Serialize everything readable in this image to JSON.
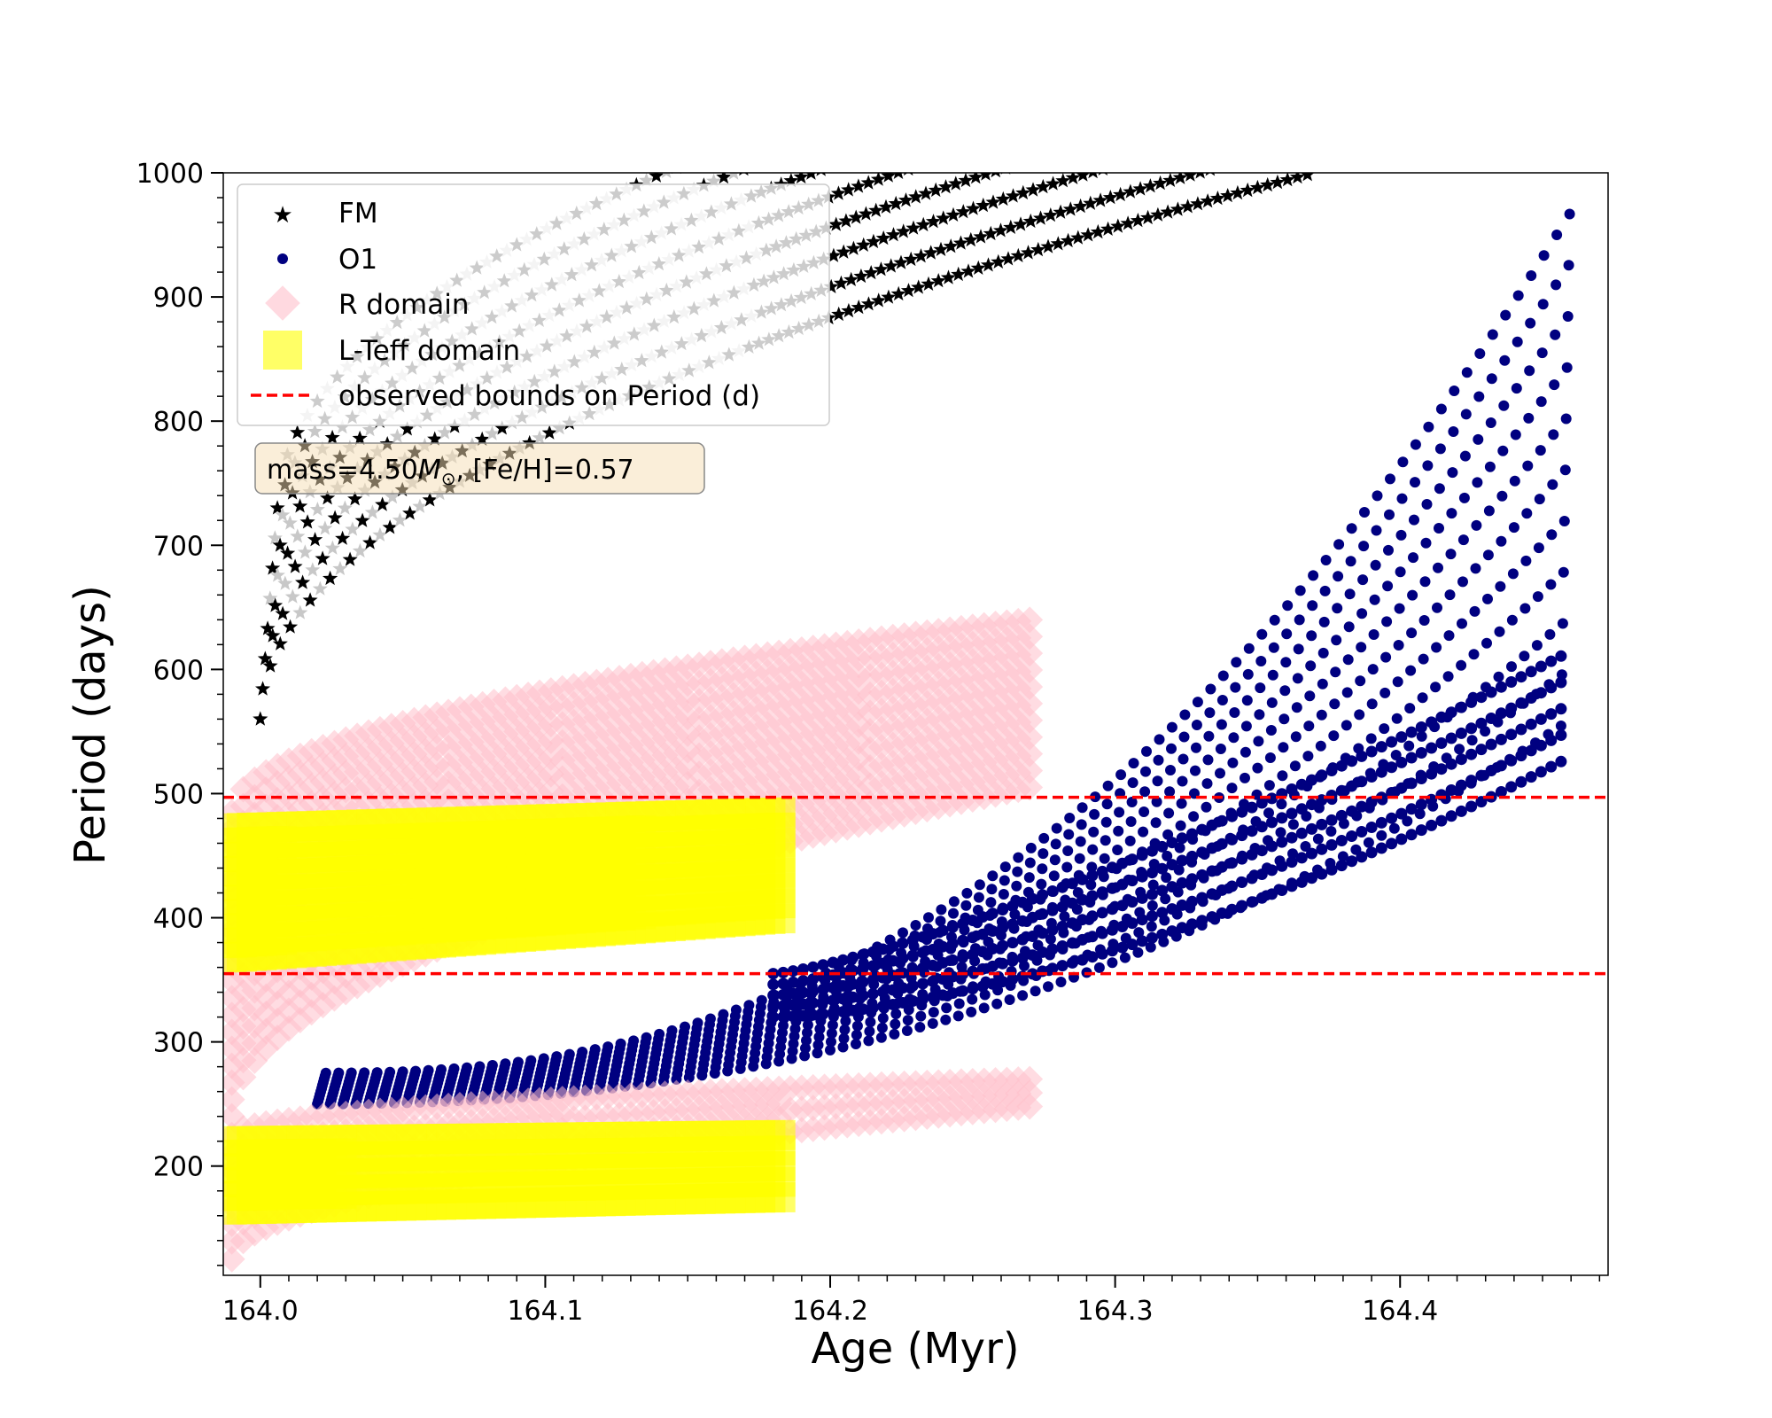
{
  "chart_data": {
    "type": "scatter",
    "xlabel": "Age (Myr)",
    "ylabel": "Period (days)",
    "xlim": [
      163.987,
      164.473
    ],
    "ylim": [
      112,
      1000
    ],
    "xticks": [
      164.0,
      164.1,
      164.2,
      164.3,
      164.4
    ],
    "xtick_labels": [
      "164.0",
      "164.1",
      "164.2",
      "164.3",
      "164.4"
    ],
    "yticks": [
      200,
      300,
      400,
      500,
      600,
      700,
      800,
      900,
      1000
    ],
    "ytick_labels": [
      "200",
      "300",
      "400",
      "500",
      "600",
      "700",
      "800",
      "900",
      "1000"
    ],
    "legend_position": "top-left",
    "annotation": {
      "text_main": "mass=4.50",
      "text_symbol": "M",
      "text_sub": "⊙",
      "text_rest": ", [Fe/H]=0.57"
    },
    "series": [
      {
        "name": "FM",
        "marker": "star",
        "color": "#000000",
        "bands": {
          "age_start": 164.0,
          "age_end": 164.37,
          "step": 0.0035,
          "p_start": 560,
          "p_end": 1000,
          "spread_start": 170,
          "spread_end": 180,
          "curvature": 2.0
        }
      },
      {
        "name": "O1",
        "marker": "circle",
        "color": "#000080",
        "bands": {
          "age_start": 164.02,
          "age_end": 164.46,
          "step": 0.0045,
          "p_start": 250,
          "p_end": 560,
          "spread_start": 25,
          "spread_end": 420,
          "curvature": 2.2
        }
      },
      {
        "name": "R domain",
        "marker": "diamond",
        "color": "#ffc0cb",
        "regions": [
          {
            "age_start": 163.99,
            "age_end": 164.27,
            "p_low_start": 240,
            "p_low_end": 505,
            "p_high_start": 485,
            "p_high_end": 640
          },
          {
            "age_start": 163.99,
            "age_end": 164.27,
            "p_low_start": 125,
            "p_low_end": 248,
            "p_high_start": 225,
            "p_high_end": 270
          }
        ]
      },
      {
        "name": "L-Teff domain",
        "marker": "square",
        "color": "#ffff00",
        "regions": [
          {
            "age_start": 163.99,
            "age_end": 164.185,
            "p_low_start": 368,
            "p_low_end": 400,
            "p_high_start": 472,
            "p_high_end": 485
          },
          {
            "age_start": 163.99,
            "age_end": 164.185,
            "p_low_start": 165,
            "p_low_end": 175,
            "p_high_start": 220,
            "p_high_end": 225
          }
        ]
      },
      {
        "name": "observed bounds on Period (d)",
        "marker": "dashed-line",
        "color": "#ff0000",
        "values": [
          355,
          497
        ]
      }
    ]
  }
}
